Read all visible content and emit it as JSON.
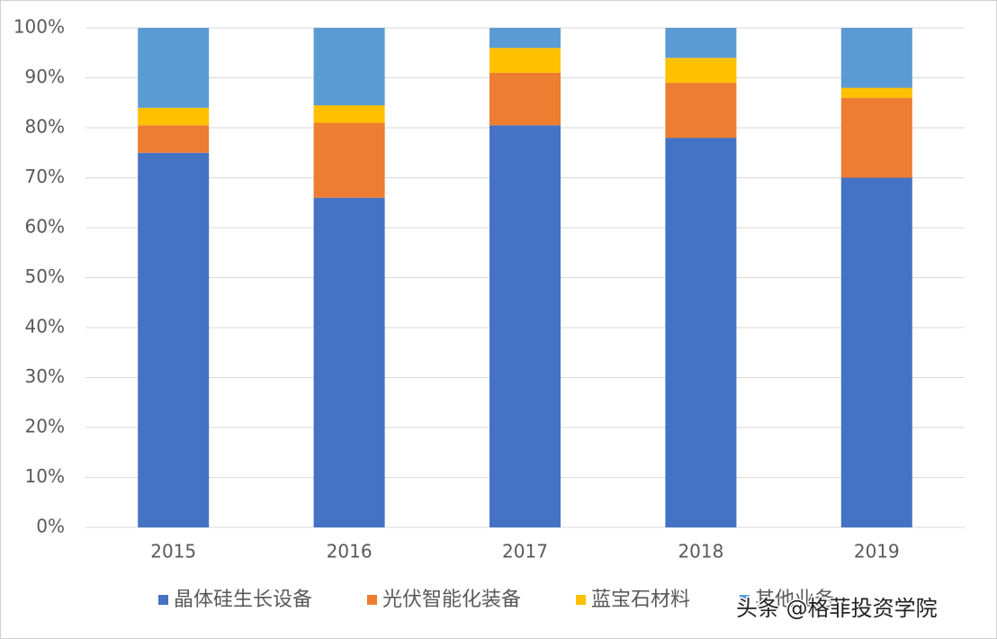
{
  "chart_data": {
    "type": "stacked_bar",
    "categories": [
      "2015",
      "2016",
      "2017",
      "2018",
      "2019"
    ],
    "series": [
      {
        "name": "晶体硅生长设备",
        "color": "#4472c4",
        "values": [
          75,
          66,
          80.5,
          78,
          70
        ]
      },
      {
        "name": "光伏智能化装备",
        "color": "#ed7d31",
        "values": [
          5.5,
          15,
          10.5,
          11,
          16
        ]
      },
      {
        "name": "蓝宝石材料",
        "color": "#ffc000",
        "values": [
          3.5,
          3.5,
          5,
          5,
          2
        ]
      },
      {
        "name": "其他业务",
        "color": "#5b9bd5",
        "values": [
          16,
          15.5,
          4,
          6,
          12
        ]
      }
    ],
    "ylim": [
      0,
      100
    ],
    "yticks": [
      {
        "value": 0,
        "label": "0%"
      },
      {
        "value": 10,
        "label": "10%"
      },
      {
        "value": 20,
        "label": "20%"
      },
      {
        "value": 30,
        "label": "30%"
      },
      {
        "value": 40,
        "label": "40%"
      },
      {
        "value": 50,
        "label": "50%"
      },
      {
        "value": 60,
        "label": "60%"
      },
      {
        "value": 70,
        "label": "70%"
      },
      {
        "value": 80,
        "label": "80%"
      },
      {
        "value": 90,
        "label": "90%"
      },
      {
        "value": 100,
        "label": "100%"
      }
    ],
    "grid": true,
    "legend": "bottom",
    "watermark": "头条 @格菲投资学院"
  }
}
